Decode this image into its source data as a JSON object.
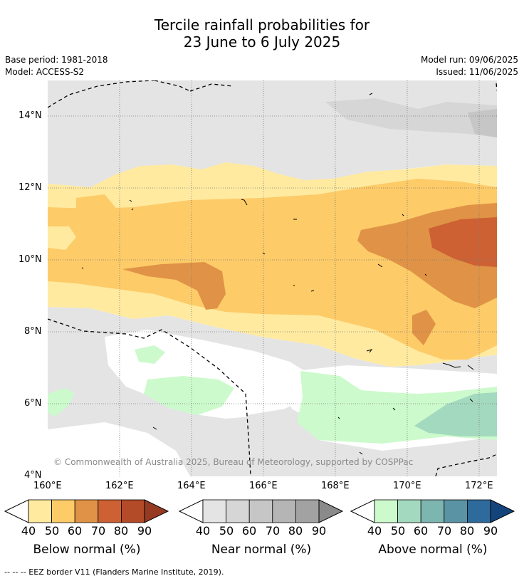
{
  "title": {
    "line1": "Tercile rainfall probabilities for",
    "line2": "23 June to 6 July 2025"
  },
  "meta": {
    "base_period": "Base period: 1981-2018",
    "model": "Model: ACCESS-S2",
    "model_run": "Model run: 09/06/2025",
    "issued": "Issued: 11/06/2025"
  },
  "map": {
    "lat_labels": [
      "14°N",
      "12°N",
      "10°N",
      "8°N",
      "6°N",
      "4°N"
    ],
    "lon_labels": [
      "160°E",
      "162°E",
      "164°E",
      "166°E",
      "168°E",
      "170°E",
      "172°E"
    ],
    "copyright": "© Commonwealth of Australia 2025, Bureau of Meteorology, supported by COSPPac",
    "extent": {
      "lon": [
        160,
        172.5
      ],
      "lat": [
        4,
        15
      ]
    },
    "grid": true
  },
  "legend": {
    "below": {
      "label": "Below normal (%)",
      "ticks": [
        "40",
        "50",
        "60",
        "70",
        "80",
        "90"
      ],
      "colors": [
        "#ffeaa0",
        "#fdcb68",
        "#e09346",
        "#cd6134",
        "#b34a28",
        "#963a22"
      ]
    },
    "near": {
      "label": "Near normal (%)",
      "ticks": [
        "40",
        "50",
        "60",
        "70",
        "80",
        "90"
      ],
      "colors": [
        "#e4e4e4",
        "#d6d6d6",
        "#c6c6c6",
        "#b5b5b5",
        "#a2a2a2",
        "#8a8a8a"
      ]
    },
    "above": {
      "label": "Above normal (%)",
      "ticks": [
        "40",
        "50",
        "60",
        "70",
        "80",
        "90"
      ],
      "colors": [
        "#ccfacc",
        "#a3d9bf",
        "#7db5b0",
        "#5a93a3",
        "#2f6a9c",
        "#13457c"
      ]
    }
  },
  "footnote": "--  --  -- EEZ border V11 (Flanders Marine Institute, 2019)."
}
